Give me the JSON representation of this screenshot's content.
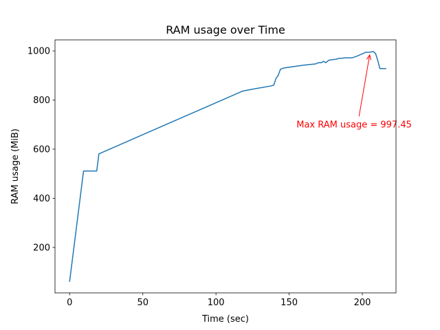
{
  "chart_data": {
    "type": "line",
    "title": "RAM usage over Time",
    "xlabel": "Time (sec)",
    "ylabel": "RAM usage (MiB)",
    "xlim": [
      -10,
      223
    ],
    "ylim": [
      15,
      1045
    ],
    "xticks": [
      0,
      50,
      100,
      150,
      200
    ],
    "yticks": [
      200,
      400,
      600,
      800,
      1000
    ],
    "grid": false,
    "legend": "none",
    "series": [
      {
        "color": "#1f77b4",
        "points": [
          [
            0,
            62
          ],
          [
            9.5,
            511
          ],
          [
            18.5,
            511
          ],
          [
            20,
            581
          ],
          [
            118,
            836
          ],
          [
            123,
            842
          ],
          [
            138,
            858
          ],
          [
            139.5,
            861
          ],
          [
            141,
            888
          ],
          [
            142.5,
            900
          ],
          [
            144,
            925
          ],
          [
            146,
            930
          ],
          [
            148,
            932
          ],
          [
            155,
            938
          ],
          [
            160,
            942
          ],
          [
            168,
            947
          ],
          [
            170,
            952
          ],
          [
            172,
            952
          ],
          [
            173.5,
            958
          ],
          [
            175,
            952
          ],
          [
            177,
            962
          ],
          [
            180,
            965
          ],
          [
            182,
            966
          ],
          [
            184,
            970
          ],
          [
            186,
            970
          ],
          [
            188,
            972
          ],
          [
            193,
            972
          ],
          [
            196,
            978
          ],
          [
            200,
            988
          ],
          [
            202,
            994
          ],
          [
            205,
            995
          ],
          [
            207.5,
            997.45
          ],
          [
            209,
            990
          ],
          [
            210.5,
            962
          ],
          [
            212,
            928
          ],
          [
            216,
            928
          ]
        ]
      }
    ],
    "annotation": {
      "text": "Max RAM usage = 997.45",
      "value": 997.45,
      "point": [
        205,
        997.45
      ],
      "text_anchor": [
        155,
        700
      ],
      "color": "#ff0000"
    }
  }
}
